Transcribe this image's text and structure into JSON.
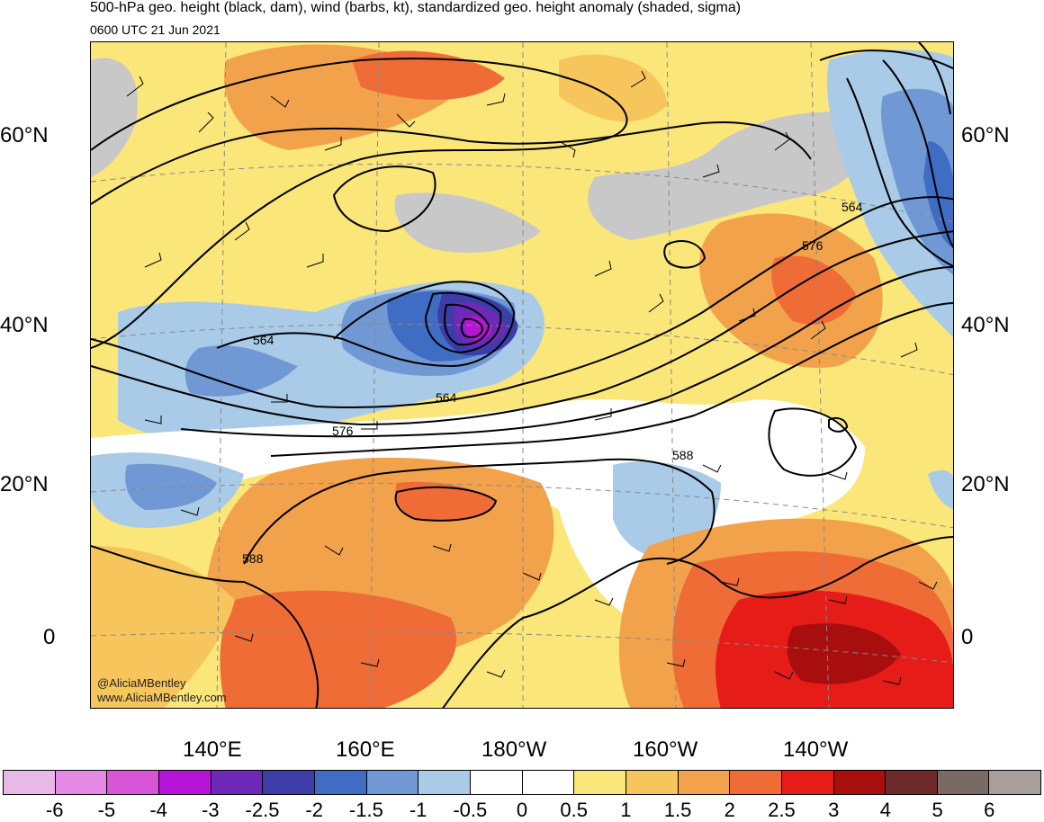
{
  "header": {
    "title": "500-hPa geo. height (black, dam), wind (barbs, kt), standardized geo. height anomaly (shaded, sigma)",
    "valid_time": "0600 UTC 21 Jun 2021"
  },
  "map": {
    "lat_labels": [
      "60°N",
      "40°N",
      "20°N",
      "0"
    ],
    "lon_labels": [
      "140°E",
      "160°E",
      "180°W",
      "160°W",
      "140°W"
    ],
    "contour_labels": [
      "564",
      "564",
      "564",
      "576",
      "576",
      "588",
      "588"
    ],
    "credit_handle": "@AliciaMBentley",
    "credit_url": "www.AliciaMBentley.com",
    "land_color": "#c8c8c8",
    "contour_color": "#000000"
  },
  "colorbar": {
    "colors": [
      "#e8b8e6",
      "#e58ae4",
      "#d855d8",
      "#b614d6",
      "#6f29b8",
      "#3d3da8",
      "#3f6dc4",
      "#6f98d4",
      "#a9cbe8",
      "#ffffff",
      "#ffffff",
      "#fbe67a",
      "#f6c65c",
      "#f3a24c",
      "#ef6c36",
      "#e61c18",
      "#a90e0e",
      "#6e2a28",
      "#7a6a66",
      "#a89e9b"
    ],
    "labels": [
      "-6",
      "-5",
      "-4",
      "-3",
      "-2.5",
      "-2",
      "-1.5",
      "-1",
      "-0.5",
      "0",
      "0.5",
      "1",
      "1.5",
      "2",
      "2.5",
      "3",
      "4",
      "5",
      "6"
    ]
  }
}
